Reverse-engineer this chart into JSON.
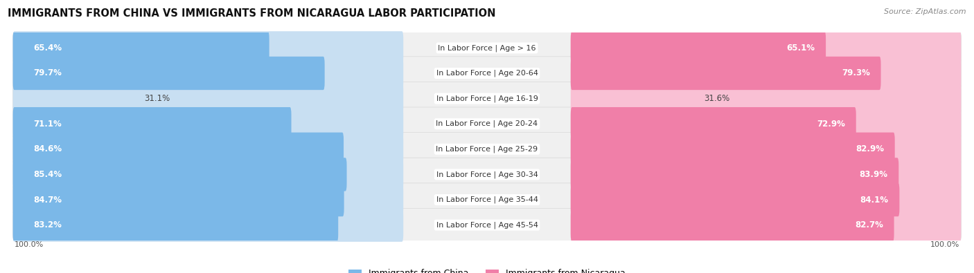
{
  "title": "IMMIGRANTS FROM CHINA VS IMMIGRANTS FROM NICARAGUA LABOR PARTICIPATION",
  "source": "Source: ZipAtlas.com",
  "categories": [
    "In Labor Force | Age > 16",
    "In Labor Force | Age 20-64",
    "In Labor Force | Age 16-19",
    "In Labor Force | Age 20-24",
    "In Labor Force | Age 25-29",
    "In Labor Force | Age 30-34",
    "In Labor Force | Age 35-44",
    "In Labor Force | Age 45-54"
  ],
  "china_values": [
    65.4,
    79.7,
    31.1,
    71.1,
    84.6,
    85.4,
    84.7,
    83.2
  ],
  "nicaragua_values": [
    65.1,
    79.3,
    31.6,
    72.9,
    82.9,
    83.9,
    84.1,
    82.7
  ],
  "china_color": "#7bb8e8",
  "nicaragua_color": "#f07fa8",
  "china_color_light": "#c8dff2",
  "nicaragua_color_light": "#f9c0d4",
  "row_bg_color": "#f0f0f0",
  "row_border_color": "#d8d8d8",
  "max_value": 100.0,
  "legend_china": "Immigrants from China",
  "legend_nicaragua": "Immigrants from Nicaragua",
  "title_fontsize": 10.5,
  "value_fontsize": 8.5,
  "cat_fontsize": 8,
  "background_color": "#ffffff",
  "threshold": 50
}
